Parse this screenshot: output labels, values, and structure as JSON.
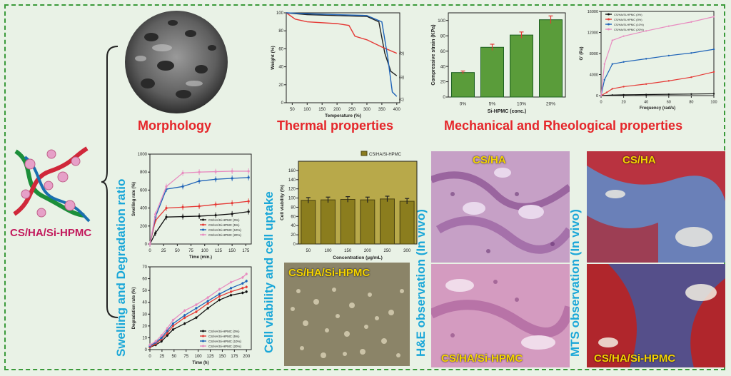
{
  "labels": {
    "composite": "CS/HA/Si-HPMC",
    "morphology": "Morphology",
    "thermal": "Thermal properties",
    "mechanical": "Mechanical and Rheological properties",
    "swelling": "Swelling and Degradation ratio",
    "cell": "Cell viability and cell uptake",
    "he": "H&E observation (In vivo)",
    "mts": "MTS observation (In vivo)",
    "he_top": "CS/HA",
    "he_bottom": "CS/HA/Si-HPMC",
    "mts_top": "CS/HA",
    "mts_bottom": "CS/HA/Si-HPMC",
    "uptake": "CS/HA/Si-HPMC"
  },
  "colors": {
    "accent_red": "#e5262a",
    "accent_blue": "#1aa7d8",
    "frame_green": "#3a9a3a",
    "s0": "#111111",
    "s5": "#e53935",
    "s10": "#1e63b8",
    "s20": "#e88cc0"
  },
  "chart_data": [
    {
      "type": "line",
      "xlabel": "Temperature (%)",
      "ylabel": "Weight (%)",
      "xlim": [
        30,
        410
      ],
      "ylim": [
        0,
        100
      ],
      "xticks": [
        50,
        100,
        150,
        200,
        250,
        300,
        350,
        400
      ],
      "yticks": [
        0,
        20,
        40,
        60,
        80,
        100
      ],
      "series": [
        {
          "name": "(a)",
          "x": [
            30,
            100,
            200,
            300,
            340,
            360,
            380,
            400
          ],
          "y": [
            100,
            98,
            97,
            96,
            90,
            55,
            35,
            30
          ]
        },
        {
          "name": "(b)",
          "x": [
            30,
            60,
            100,
            200,
            240,
            260,
            300,
            350,
            400
          ],
          "y": [
            100,
            93,
            90,
            88,
            86,
            74,
            70,
            62,
            55
          ]
        },
        {
          "name": "(c)",
          "x": [
            30,
            100,
            200,
            300,
            350,
            370,
            385,
            400
          ],
          "y": [
            100,
            99,
            98,
            97,
            90,
            50,
            12,
            7
          ]
        }
      ]
    },
    {
      "type": "bar",
      "xlabel": "Si-HPMC (conc.)",
      "ylabel": "Compressive strain (KPa)",
      "categories": [
        "0%",
        "5%",
        "10%",
        "20%"
      ],
      "values": [
        32,
        65,
        81,
        101
      ],
      "errors": [
        2,
        4,
        4,
        5
      ],
      "ylim": [
        0,
        110
      ],
      "yticks": [
        0,
        20,
        40,
        60,
        80,
        100
      ]
    },
    {
      "type": "line",
      "xlabel": "Frequency (rad/s)",
      "ylabel": "G' (Pa)",
      "xlim": [
        0,
        100
      ],
      "ylim": [
        0,
        16000
      ],
      "xticks": [
        0,
        20,
        40,
        60,
        80,
        100
      ],
      "yticks": [
        0,
        4000,
        8000,
        12000,
        16000
      ],
      "series": [
        {
          "name": "CS/HA/Si-HPMC (0%)",
          "x": [
            0,
            10,
            20,
            40,
            60,
            80,
            100
          ],
          "y": [
            0,
            100,
            150,
            200,
            250,
            300,
            350
          ]
        },
        {
          "name": "CS/HA/Si-HPMC (5%)",
          "x": [
            0,
            5,
            10,
            20,
            40,
            60,
            80,
            100
          ],
          "y": [
            0,
            600,
            1300,
            1700,
            2200,
            2800,
            3500,
            4500
          ]
        },
        {
          "name": "CS/HA/Si-HPMC (10%)",
          "x": [
            0,
            3,
            10,
            20,
            40,
            60,
            80,
            100
          ],
          "y": [
            0,
            3000,
            6000,
            6400,
            7000,
            7600,
            8100,
            8800
          ]
        },
        {
          "name": "CS/HA/Si-HPMC (20%)",
          "x": [
            0,
            3,
            10,
            20,
            40,
            60,
            80,
            100
          ],
          "y": [
            0,
            6000,
            10500,
            11300,
            12300,
            13200,
            14000,
            15000
          ]
        }
      ]
    },
    {
      "type": "line",
      "xlabel": "Time (min.)",
      "ylabel": "Swelling rate (%)",
      "xlim": [
        0,
        185
      ],
      "ylim": [
        0,
        1000
      ],
      "xticks": [
        0,
        25,
        50,
        75,
        100,
        125,
        150,
        175
      ],
      "yticks": [
        0,
        200,
        400,
        600,
        800,
        1000
      ],
      "series": [
        {
          "name": "CS/HA/Si-HPMC (0%)",
          "x": [
            0,
            10,
            30,
            60,
            90,
            120,
            150,
            180
          ],
          "y": [
            0,
            120,
            300,
            305,
            310,
            320,
            335,
            360
          ]
        },
        {
          "name": "CS/HA/Si-HPMC (5%)",
          "x": [
            0,
            10,
            30,
            60,
            90,
            120,
            150,
            180
          ],
          "y": [
            0,
            260,
            400,
            410,
            420,
            440,
            455,
            475
          ]
        },
        {
          "name": "CS/HA/Si-HPMC (10%)",
          "x": [
            0,
            10,
            30,
            60,
            90,
            120,
            150,
            180
          ],
          "y": [
            0,
            300,
            610,
            640,
            700,
            720,
            730,
            740
          ]
        },
        {
          "name": "CS/HA/Si-HPMC (20%)",
          "x": [
            0,
            10,
            30,
            60,
            90,
            120,
            150,
            180
          ],
          "y": [
            0,
            330,
            640,
            790,
            800,
            805,
            810,
            810
          ]
        }
      ]
    },
    {
      "type": "bar",
      "title": "CS/HA/Si-HPMC",
      "xlabel": "Concentration (µg/mL)",
      "ylabel": "Cell viability (%)",
      "categories": [
        "50",
        "100",
        "150",
        "200",
        "250",
        "300"
      ],
      "values": [
        95,
        96,
        97,
        96,
        98,
        93
      ],
      "errors": [
        6,
        6,
        6,
        6,
        6,
        6
      ],
      "ylim": [
        0,
        180
      ],
      "yticks": [
        0,
        20,
        40,
        60,
        80,
        100,
        120,
        140,
        160
      ]
    },
    {
      "type": "line",
      "xlabel": "Time (h)",
      "ylabel": "Degradation rate (%)",
      "xlim": [
        0,
        210
      ],
      "ylim": [
        0,
        70
      ],
      "xticks": [
        0,
        25,
        50,
        75,
        100,
        125,
        150,
        175,
        200
      ],
      "yticks": [
        0,
        10,
        20,
        30,
        40,
        50,
        60,
        70
      ],
      "series": [
        {
          "name": "CS/HA/Si-HPMC (0%)",
          "x": [
            0,
            12,
            24,
            36,
            48,
            72,
            96,
            120,
            144,
            168,
            192,
            200
          ],
          "y": [
            2,
            4,
            7,
            12,
            17,
            22,
            27,
            35,
            42,
            46,
            48,
            49
          ]
        },
        {
          "name": "CS/HA/Si-HPMC (5%)",
          "x": [
            0,
            12,
            24,
            36,
            48,
            72,
            96,
            120,
            144,
            168,
            192,
            200
          ],
          "y": [
            2,
            5,
            9,
            14,
            20,
            27,
            32,
            39,
            45,
            49,
            52,
            53
          ]
        },
        {
          "name": "CS/HA/Si-HPMC (10%)",
          "x": [
            0,
            12,
            24,
            36,
            48,
            72,
            96,
            120,
            144,
            168,
            192,
            200
          ],
          "y": [
            3,
            6,
            10,
            16,
            22,
            29,
            35,
            41,
            47,
            52,
            56,
            58
          ]
        },
        {
          "name": "CS/HA/Si-HPMC (20%)",
          "x": [
            0,
            12,
            24,
            36,
            48,
            72,
            96,
            120,
            144,
            168,
            192,
            200
          ],
          "y": [
            4,
            7,
            12,
            18,
            25,
            33,
            38,
            44,
            51,
            57,
            61,
            64
          ]
        }
      ]
    }
  ]
}
